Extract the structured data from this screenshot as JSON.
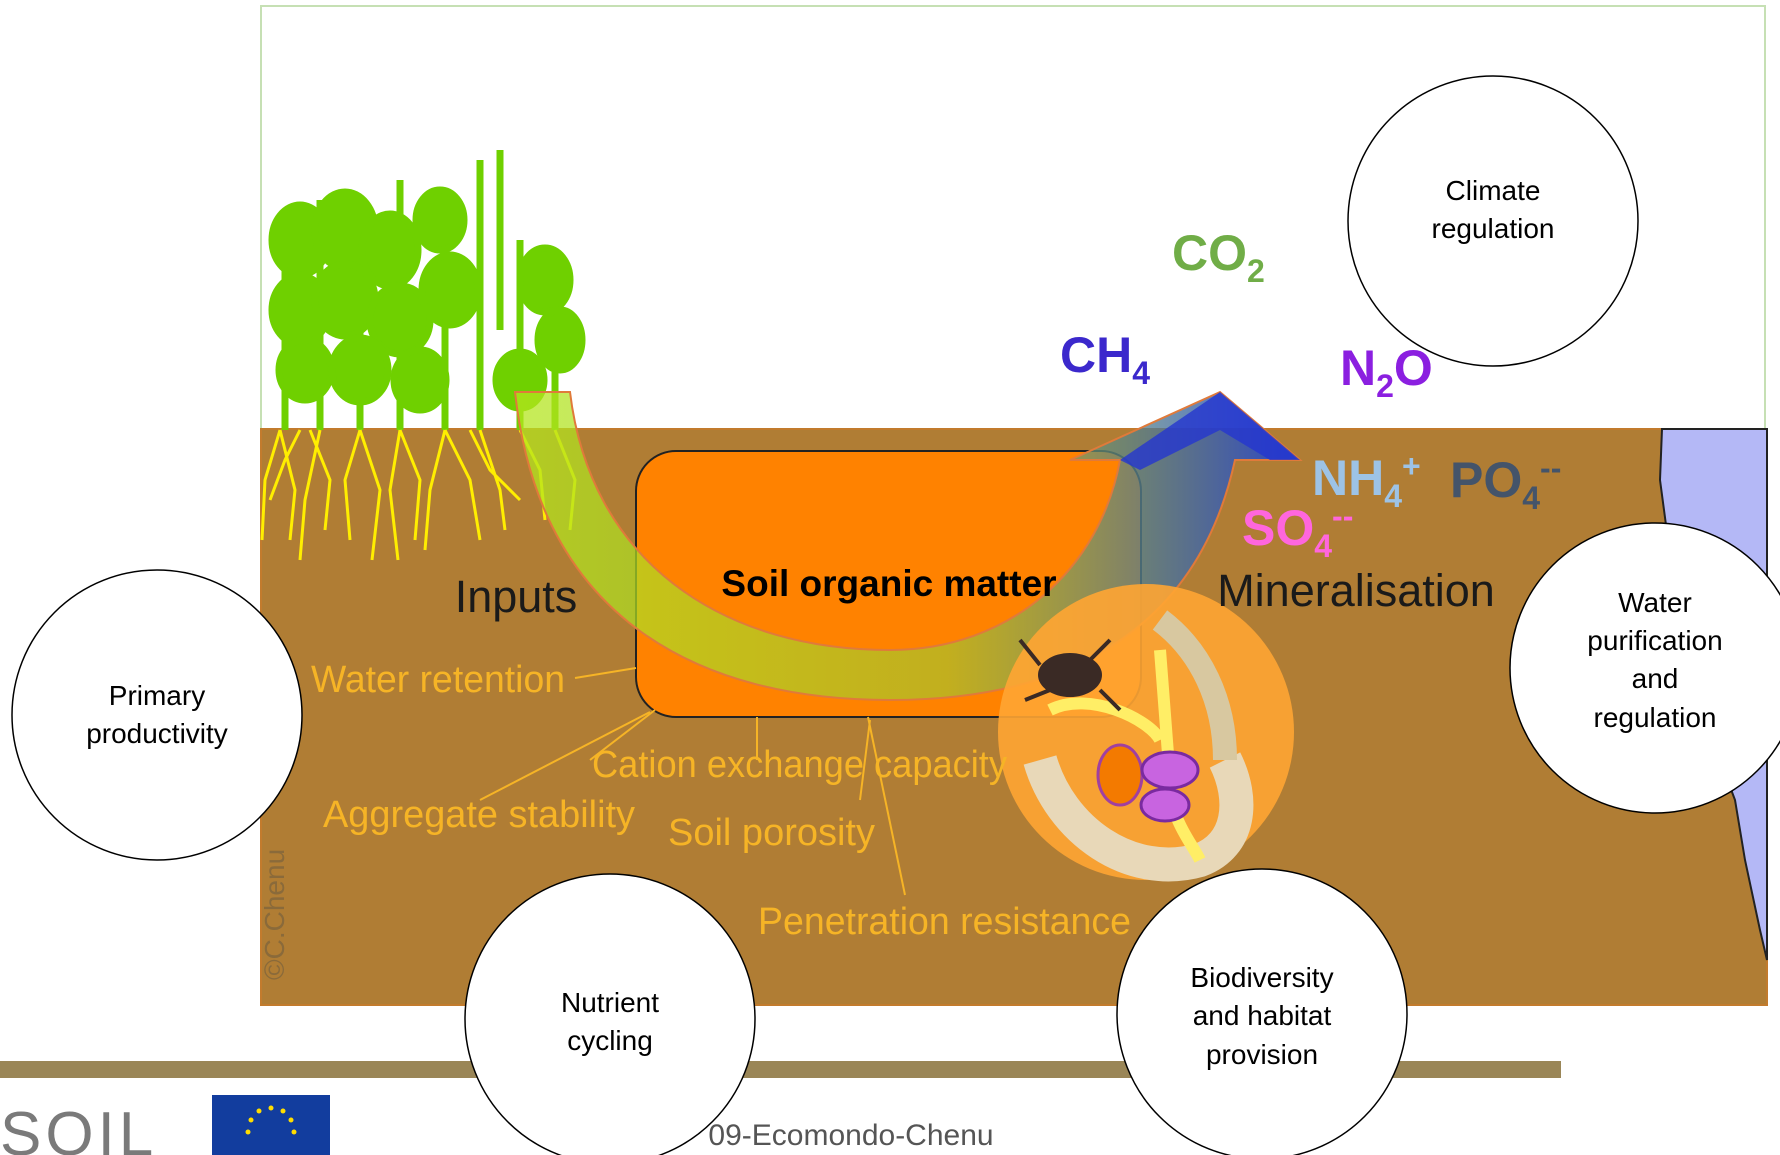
{
  "diagram": {
    "services": [
      [
        "Climate",
        "regulation"
      ],
      [
        "Water",
        "purification",
        "and",
        "regulation"
      ],
      [
        "Primary",
        "productivity"
      ],
      [
        "Nutrient",
        "cycling"
      ],
      [
        "Biodiversity",
        "and habitat",
        "provision"
      ]
    ],
    "processes": {
      "inputs": "Inputs",
      "center": "Soil organic matter",
      "output": "Mineralisation"
    },
    "properties": [
      "Water retention",
      "Cation exchange capacity",
      "Aggregate stability",
      "Soil porosity",
      "Penetration resistance"
    ],
    "gases": [
      {
        "base": "CO",
        "sub": "2",
        "sup": null
      },
      {
        "base": "CH",
        "sub": "4",
        "sup": null
      },
      {
        "base": "N",
        "sub": "2",
        "after": "O"
      },
      {
        "base": "NH",
        "sub": "4",
        "sup": "+"
      },
      {
        "base": "PO",
        "sub": "4",
        "sup": "--"
      },
      {
        "base": "SO",
        "sub": "4",
        "sup": "--"
      }
    ],
    "credit": "©C.Chenu"
  },
  "footer": {
    "logo": "SOIL",
    "text": "09-Ecomondo-Chenu"
  }
}
